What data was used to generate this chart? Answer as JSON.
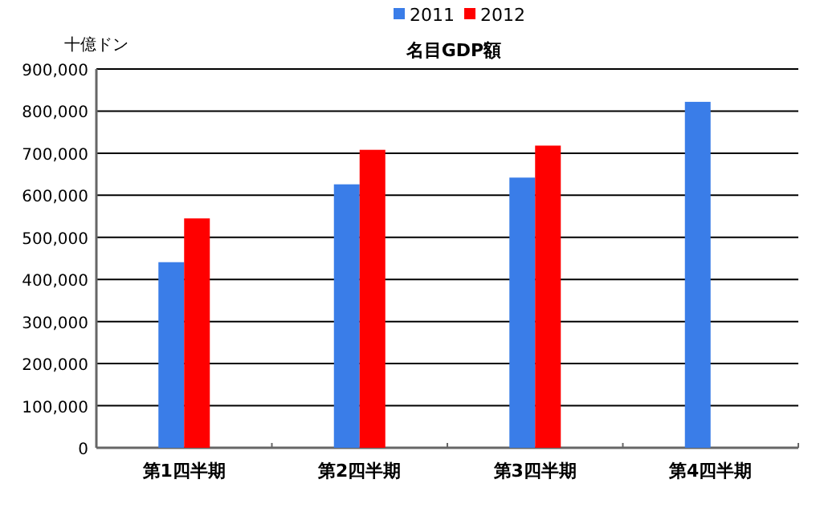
{
  "chart_data": {
    "type": "bar",
    "title": "名目GDP額",
    "ylabel": "十億ドン",
    "categories": [
      "第1四半期",
      "第2四半期",
      "第3四半期",
      "第4四半期"
    ],
    "series": [
      {
        "name": "2011",
        "color": "#3a7de8",
        "values": [
          441000,
          626000,
          642000,
          822000
        ]
      },
      {
        "name": "2012",
        "color": "#ff0000",
        "values": [
          545000,
          708000,
          718000,
          null
        ]
      }
    ],
    "ylim": [
      0,
      900000
    ],
    "yticks": [
      {
        "value": 0,
        "label": "0"
      },
      {
        "value": 100000,
        "label": "100,000"
      },
      {
        "value": 200000,
        "label": "200,000"
      },
      {
        "value": 300000,
        "label": "300,000"
      },
      {
        "value": 400000,
        "label": "400,000"
      },
      {
        "value": 500000,
        "label": "500,000"
      },
      {
        "value": 600000,
        "label": "600,000"
      },
      {
        "value": 700000,
        "label": "700,000"
      },
      {
        "value": 800000,
        "label": "800,000"
      },
      {
        "value": 900000,
        "label": "900,000"
      }
    ],
    "grid": "y",
    "legend": "top"
  }
}
